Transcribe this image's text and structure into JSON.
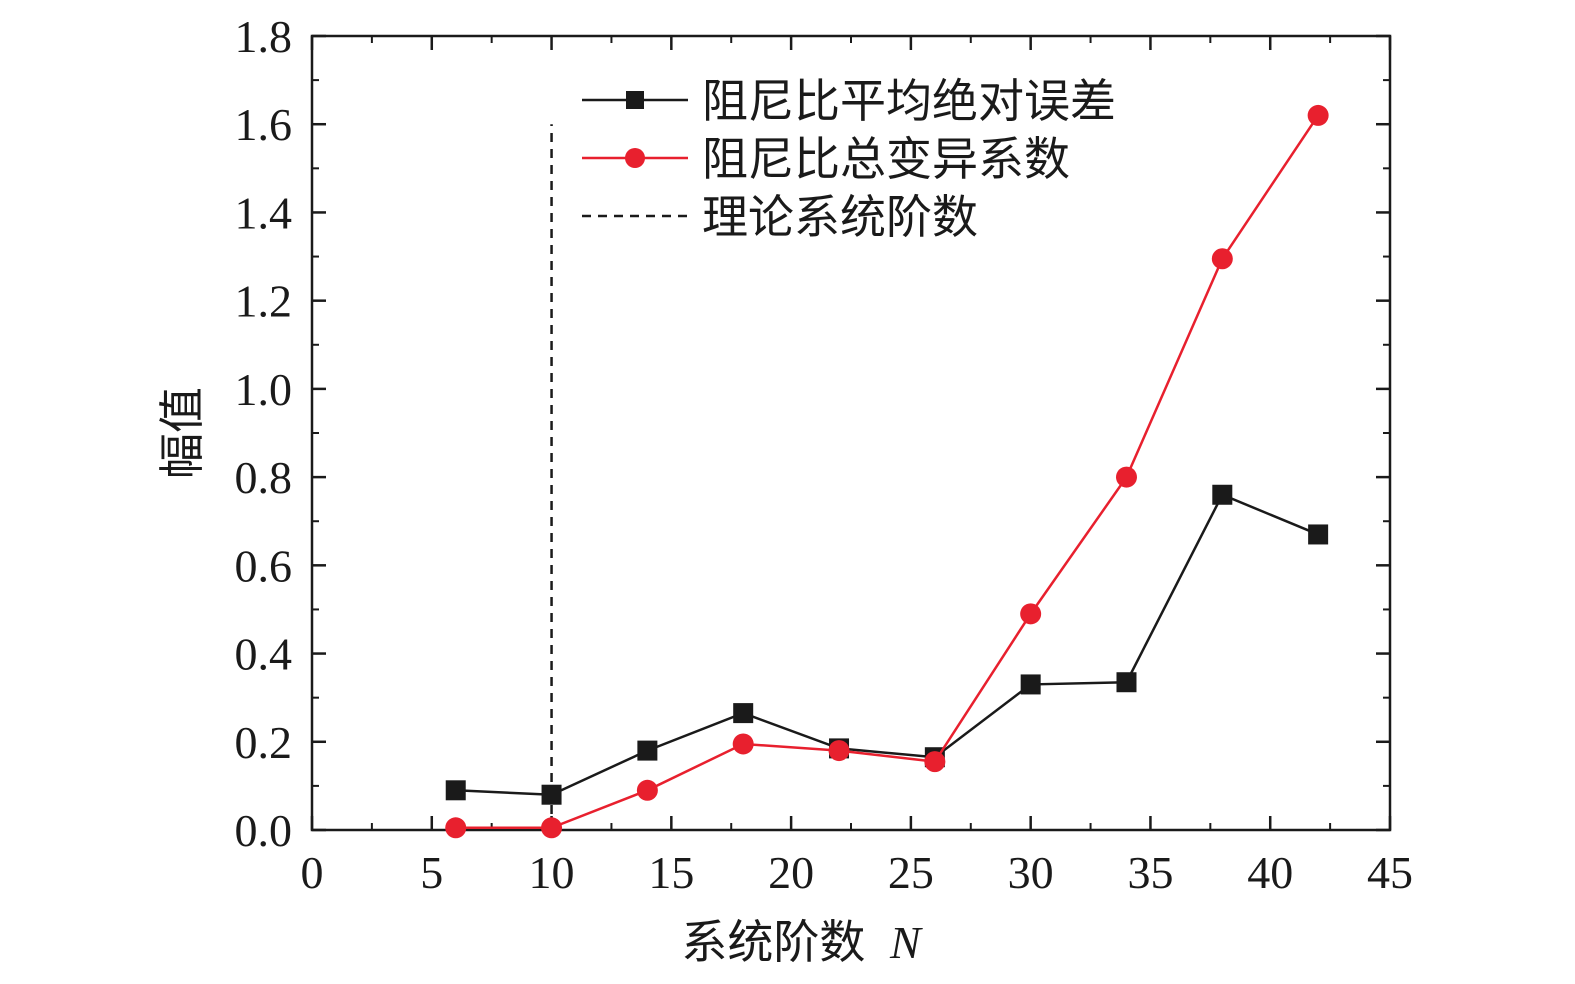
{
  "chart_data": {
    "type": "line",
    "xlabel": "系统阶数",
    "xlabel_var": "N",
    "ylabel": "幅值",
    "xlim": [
      0,
      45
    ],
    "ylim": [
      0,
      1.8
    ],
    "x_ticks": [
      "0",
      "5",
      "10",
      "15",
      "20",
      "25",
      "30",
      "35",
      "40",
      "45"
    ],
    "y_ticks": [
      "0.0",
      "0.2",
      "0.4",
      "0.6",
      "0.8",
      "1.0",
      "1.2",
      "1.4",
      "1.6",
      "1.8"
    ],
    "x": [
      6,
      10,
      14,
      18,
      22,
      26,
      30,
      34,
      38,
      42
    ],
    "series": [
      {
        "name": "阻尼比平均绝对误差",
        "marker": "square",
        "color": "#1a1a1a",
        "values": [
          0.09,
          0.08,
          0.18,
          0.265,
          0.185,
          0.165,
          0.33,
          0.335,
          0.76,
          0.67
        ]
      },
      {
        "name": "阻尼比总变异系数",
        "marker": "circle",
        "color": "#e8202e",
        "values": [
          0.005,
          0.005,
          0.09,
          0.195,
          0.18,
          0.155,
          0.49,
          0.8,
          1.295,
          1.62
        ]
      }
    ],
    "reference_line": {
      "name": "理论系统阶数",
      "x": 10,
      "y_top": 1.6,
      "style": "dashed",
      "color": "#1a1a1a"
    },
    "legend_position": "top-center",
    "grid": false
  }
}
